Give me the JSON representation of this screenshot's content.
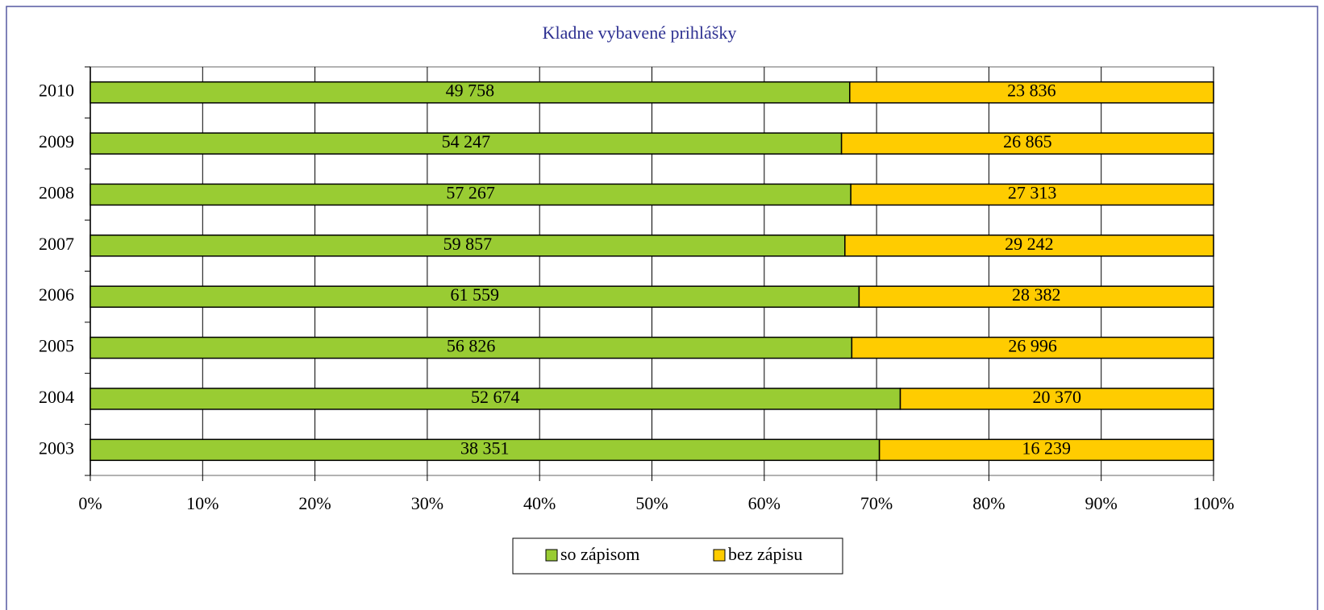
{
  "chart_data": {
    "type": "bar",
    "orientation": "horizontal",
    "stacking": "percent",
    "title": "Kladne vybavené prihlášky",
    "categories": [
      "2010",
      "2009",
      "2008",
      "2007",
      "2006",
      "2005",
      "2004",
      "2003"
    ],
    "series": [
      {
        "name": "so zápisom",
        "color": "#99cc33",
        "values": [
          49758,
          54247,
          57267,
          59857,
          61559,
          56826,
          52674,
          38351
        ],
        "value_labels": [
          "49 758",
          "54 247",
          "57 267",
          "59 857",
          "61 559",
          "56 826",
          "52 674",
          "38 351"
        ]
      },
      {
        "name": "bez zápisu",
        "color": "#ffcc00",
        "values": [
          23836,
          26865,
          27313,
          29242,
          28382,
          26996,
          20370,
          16239
        ],
        "value_labels": [
          "23 836",
          "26 865",
          "27 313",
          "29 242",
          "28 382",
          "26 996",
          "20 370",
          "16 239"
        ]
      }
    ],
    "xlim": [
      0,
      100
    ],
    "xticks": [
      {
        "value": 0,
        "label": "0%"
      },
      {
        "value": 10,
        "label": "10%"
      },
      {
        "value": 20,
        "label": "20%"
      },
      {
        "value": 30,
        "label": "30%"
      },
      {
        "value": 40,
        "label": "40%"
      },
      {
        "value": 50,
        "label": "50%"
      },
      {
        "value": 60,
        "label": "60%"
      },
      {
        "value": 70,
        "label": "70%"
      },
      {
        "value": 80,
        "label": "80%"
      },
      {
        "value": 90,
        "label": "90%"
      },
      {
        "value": 100,
        "label": "100%"
      }
    ],
    "grid": true,
    "legend": "bottom"
  }
}
